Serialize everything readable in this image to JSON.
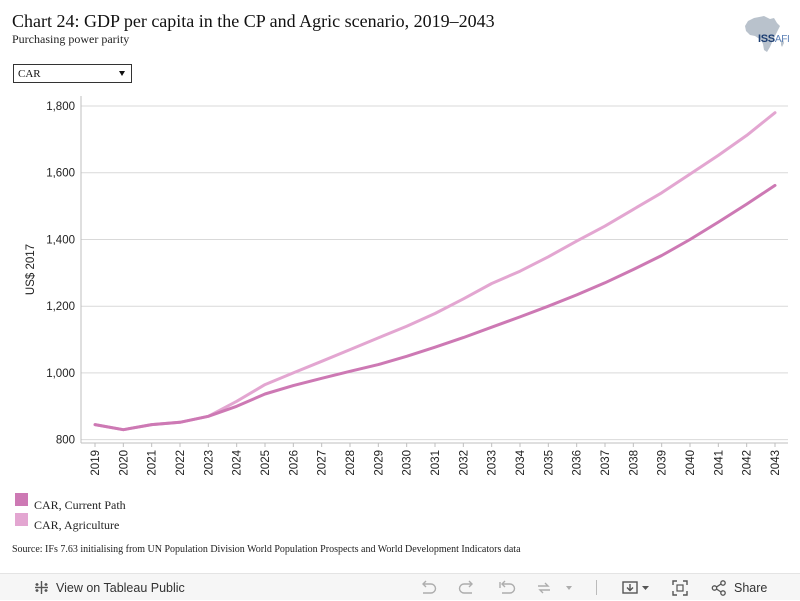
{
  "header": {
    "title": "Chart 24: GDP per capita in the CP and Agric scenario, 2019–2043",
    "subtitle": "Purchasing power parity"
  },
  "logo": {
    "text_bold": "ISS",
    "text_light": "AFI"
  },
  "filter": {
    "selected": "CAR"
  },
  "chart_data": {
    "type": "line",
    "title": "Chart 24: GDP per capita in the CP and Agric scenario, 2019–2043",
    "subtitle": "Purchasing power parity",
    "xlabel": "",
    "ylabel": "US$ 2017",
    "x": [
      "2019",
      "2020",
      "2021",
      "2022",
      "2023",
      "2024",
      "2025",
      "2026",
      "2027",
      "2028",
      "2029",
      "2030",
      "2031",
      "2032",
      "2033",
      "2034",
      "2035",
      "2036",
      "2037",
      "2038",
      "2039",
      "2040",
      "2041",
      "2042",
      "2043"
    ],
    "ylim": [
      790,
      1830
    ],
    "yticks": [
      800,
      1000,
      1200,
      1400,
      1600,
      1800
    ],
    "ytick_labels": [
      "800",
      "1,000",
      "1,200",
      "1,400",
      "1,600",
      "1,800"
    ],
    "grid": true,
    "series": [
      {
        "name": "CAR, Current Path",
        "color": "#cd79b4",
        "values": [
          845,
          830,
          845,
          852,
          870,
          900,
          937,
          962,
          984,
          1005,
          1025,
          1050,
          1077,
          1106,
          1137,
          1168,
          1200,
          1234,
          1270,
          1310,
          1352,
          1400,
          1452,
          1506,
          1562
        ]
      },
      {
        "name": "CAR, Agriculture",
        "color": "#e3a6d1",
        "values": [
          845,
          830,
          845,
          852,
          870,
          915,
          965,
          1000,
          1035,
          1070,
          1105,
          1140,
          1178,
          1222,
          1268,
          1305,
          1348,
          1395,
          1440,
          1490,
          1540,
          1596,
          1652,
          1712,
          1780
        ]
      }
    ],
    "legend_position": "bottom-left"
  },
  "legend": [
    {
      "label": "CAR, Current Path",
      "color": "#cd79b4"
    },
    {
      "label": "CAR, Agriculture",
      "color": "#e3a6d1"
    }
  ],
  "source": "Source: IFs 7.63 initialising from UN Population Division World Population Prospects and World Development Indicators data",
  "toolbar": {
    "view_label": "View on Tableau Public",
    "share_label": "Share"
  }
}
